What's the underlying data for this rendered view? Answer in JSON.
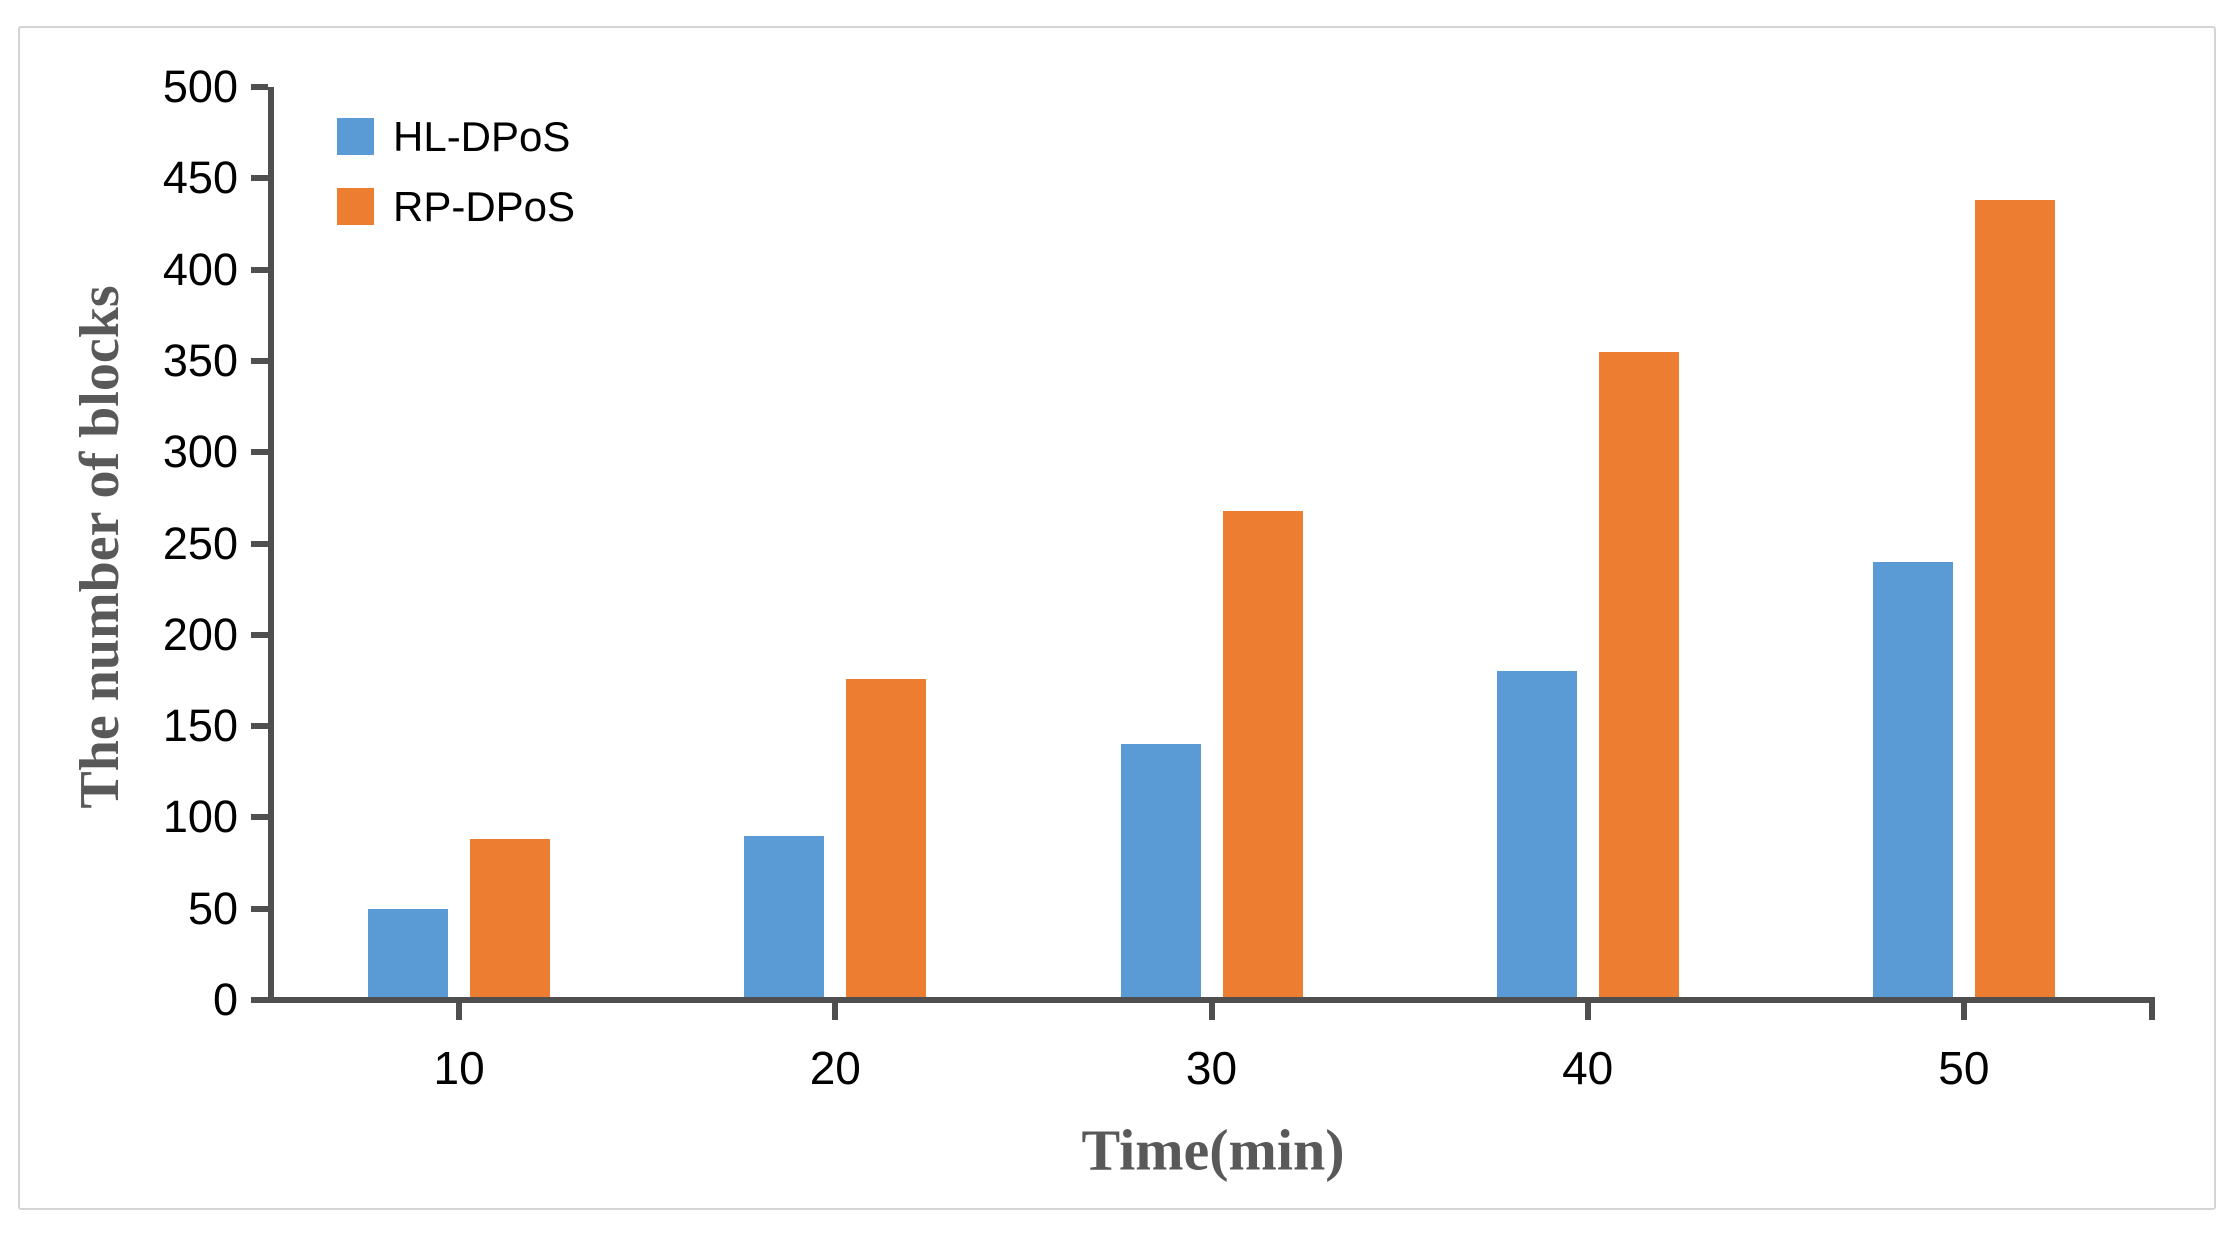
{
  "figure": {
    "border_color": "#d4d4d4",
    "background": "#ffffff",
    "axis_color": "#4f4f4f",
    "tick_label_color": "#000000",
    "axis_title_color": "#595959"
  },
  "chart_data": {
    "type": "bar",
    "title": "",
    "categories": [
      "10",
      "20",
      "30",
      "40",
      "50"
    ],
    "series": [
      {
        "name": "HL-DPoS",
        "color": "#5B9BD5",
        "values": [
          50,
          90,
          140,
          180,
          240
        ]
      },
      {
        "name": "RP-DPoS",
        "color": "#ED7D31",
        "values": [
          88,
          176,
          268,
          355,
          438
        ]
      }
    ],
    "xlabel": "Time(min)",
    "ylabel": "The number of blocks",
    "ylim": [
      0,
      500
    ],
    "ytick_step": 50,
    "yticks": [
      0,
      50,
      100,
      150,
      200,
      250,
      300,
      350,
      400,
      450,
      500
    ],
    "grid": false,
    "legend_position": "top-left"
  }
}
